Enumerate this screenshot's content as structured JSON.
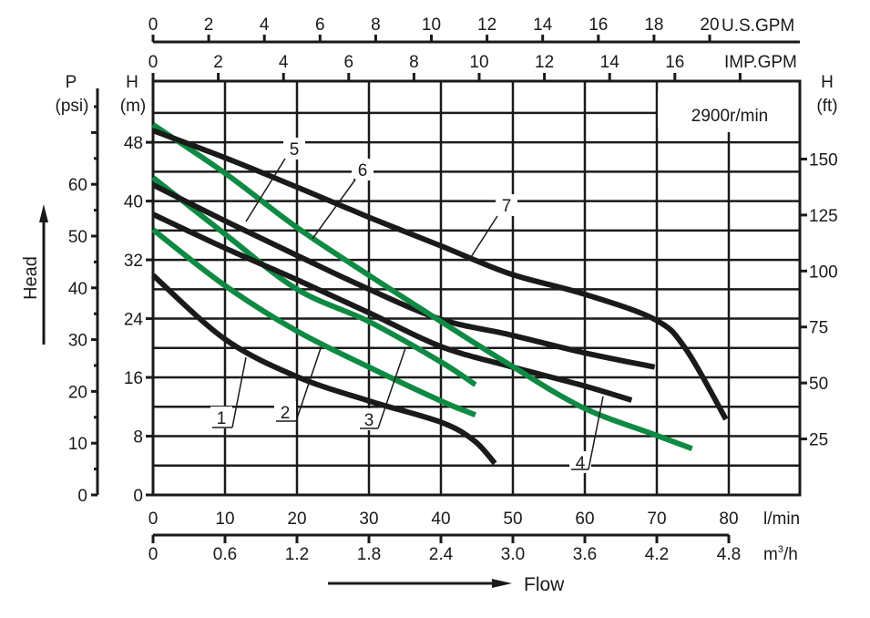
{
  "chart_data": {
    "type": "line",
    "speed_label": "2900r/min",
    "x_axis": {
      "unit": "l/min",
      "range": [
        0,
        80
      ],
      "ticks": [
        "0",
        "10",
        "20",
        "30",
        "40",
        "50",
        "60",
        "70",
        "80"
      ]
    },
    "x_axis_m3h": {
      "unit": "m³/h",
      "unit_base": "m",
      "unit_sup": "3",
      "unit_tail": "/h",
      "ticks": [
        "0",
        "0.6",
        "1.2",
        "1.8",
        "2.4",
        "3.0",
        "3.6",
        "4.2",
        "4.8"
      ]
    },
    "x_axis_usgpm": {
      "unit": "U.S.GPM",
      "ticks": [
        "0",
        "2",
        "4",
        "6",
        "8",
        "10",
        "12",
        "14",
        "16",
        "18",
        "20"
      ]
    },
    "x_axis_impgpm": {
      "unit": "IMP.GPM",
      "ticks": [
        "0",
        "2",
        "4",
        "6",
        "8",
        "10",
        "12",
        "14",
        "16"
      ]
    },
    "y_axis_m": {
      "label_top": "H",
      "label_unit": "(m)",
      "range": [
        0,
        52
      ],
      "ticks": [
        "0",
        "8",
        "16",
        "24",
        "32",
        "40",
        "48"
      ]
    },
    "y_axis_psi": {
      "label_top": "P",
      "label_unit": "(psi)",
      "ticks": [
        "0",
        "10",
        "20",
        "30",
        "40",
        "50",
        "60"
      ]
    },
    "y_axis_ft": {
      "label_top": "H",
      "label_unit": "(ft)",
      "ticks": [
        "25",
        "50",
        "75",
        "100",
        "125",
        "150"
      ]
    },
    "ylabel": "Head",
    "xlabel": "Flow",
    "grid": true,
    "colors": {
      "black": "#1a1a1a",
      "green": "#0f8a43"
    },
    "series": [
      {
        "name": "1",
        "color": "#1a1a1a",
        "x": [
          0,
          10,
          20,
          30,
          40,
          44.6,
          47.5
        ],
        "y": [
          29.9,
          21.2,
          16.1,
          12.8,
          9.9,
          7.4,
          4.3
        ]
      },
      {
        "name": "2",
        "color": "#0f8a43",
        "x": [
          0,
          10,
          20,
          30,
          40,
          44.8
        ],
        "y": [
          36.1,
          28.5,
          22.3,
          17.4,
          12.8,
          10.9
        ]
      },
      {
        "name": "3",
        "color": "#0f8a43",
        "x": [
          0,
          10,
          20,
          30,
          40,
          44.8
        ],
        "y": [
          43.2,
          35.5,
          28.0,
          23.6,
          18.1,
          15.0
        ]
      },
      {
        "name": "4",
        "color": "#1a1a1a",
        "x": [
          0,
          10,
          20,
          30,
          40,
          49.6,
          59.7,
          66.5
        ],
        "y": [
          38.2,
          33.6,
          29.3,
          24.8,
          20.2,
          17.5,
          14.9,
          12.9
        ]
      },
      {
        "name": "5",
        "color": "#1a1a1a",
        "x": [
          0,
          10,
          20,
          30,
          40,
          49.6,
          59.7,
          69.7
        ],
        "y": [
          42.2,
          37.3,
          32.6,
          28.0,
          23.9,
          21.8,
          19.4,
          17.4
        ]
      },
      {
        "name": "6",
        "color": "#0f8a43",
        "x": [
          0,
          10,
          20,
          30,
          40,
          49.6,
          59.7,
          69.7,
          74.9
        ],
        "y": [
          50.4,
          43.8,
          36.4,
          29.9,
          23.6,
          17.7,
          11.9,
          8.2,
          6.3
        ]
      },
      {
        "name": "7",
        "color": "#1a1a1a",
        "x": [
          0,
          10,
          20,
          30,
          40,
          49.6,
          59.7,
          69.7,
          74,
          79.6
        ],
        "y": [
          49.6,
          45.9,
          41.9,
          37.8,
          33.9,
          30.1,
          27.4,
          23.9,
          19.9,
          10.3
        ]
      }
    ]
  }
}
